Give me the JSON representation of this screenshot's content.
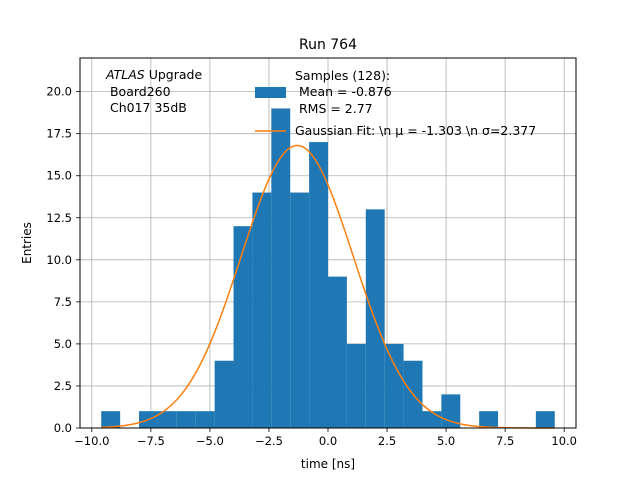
{
  "chart_data": {
    "type": "bar",
    "title": "Run 764",
    "xlabel": "time [ns]",
    "ylabel": "Entries",
    "xlim": [
      -10.5,
      10.5
    ],
    "ylim": [
      0,
      22
    ],
    "grid": true,
    "x_ticks": [
      -10.0,
      -7.5,
      -5.0,
      -2.5,
      0.0,
      2.5,
      5.0,
      7.5,
      10.0
    ],
    "x_tick_labels": [
      "−10.0",
      "−7.5",
      "−5.0",
      "−2.5",
      "0.0",
      "2.5",
      "5.0",
      "7.5",
      "10.0"
    ],
    "y_ticks": [
      0.0,
      2.5,
      5.0,
      7.5,
      10.0,
      12.5,
      15.0,
      17.5,
      20.0
    ],
    "y_tick_labels": [
      "0.0",
      "2.5",
      "5.0",
      "7.5",
      "10.0",
      "12.5",
      "15.0",
      "17.5",
      "20.0"
    ],
    "histogram": {
      "name": "Samples",
      "color": "#1f77b4",
      "bin_edges": [
        -9.6,
        -8.8,
        -8.0,
        -7.2,
        -6.4,
        -5.6,
        -4.8,
        -4.0,
        -3.2,
        -2.4,
        -1.6,
        -0.8,
        0.0,
        0.8,
        1.6,
        2.4,
        3.2,
        4.0,
        4.8,
        5.6,
        6.4,
        7.2,
        8.0,
        8.8,
        9.6
      ],
      "counts": [
        1,
        0,
        1,
        1,
        1,
        1,
        4,
        12,
        14,
        19,
        14,
        17,
        9,
        5,
        13,
        5,
        4,
        1,
        2,
        0,
        1,
        0,
        0,
        1
      ]
    },
    "fit": {
      "name": "Gaussian Fit",
      "color": "#ff7f0e",
      "mu": -1.303,
      "sigma": 2.377,
      "amplitude": 16.8,
      "x_range": [
        -9.6,
        9.6
      ]
    },
    "legend": {
      "placement": "top-right",
      "entries": [
        {
          "label_lines": [
            "Samples (128):",
            " Mean = -0.876",
            " RMS = 2.77"
          ],
          "color": "#1f77b4",
          "kind": "patch"
        },
        {
          "label_lines": [
            "Gaussian Fit: \\n μ = -1.303 \\n σ=2.377"
          ],
          "color": "#ff7f0e",
          "kind": "line"
        }
      ]
    },
    "annotation": {
      "italic": "ATLAS",
      "rest": " Upgrade",
      "lines": [
        " Board260",
        " Ch017 35dB"
      ]
    }
  }
}
